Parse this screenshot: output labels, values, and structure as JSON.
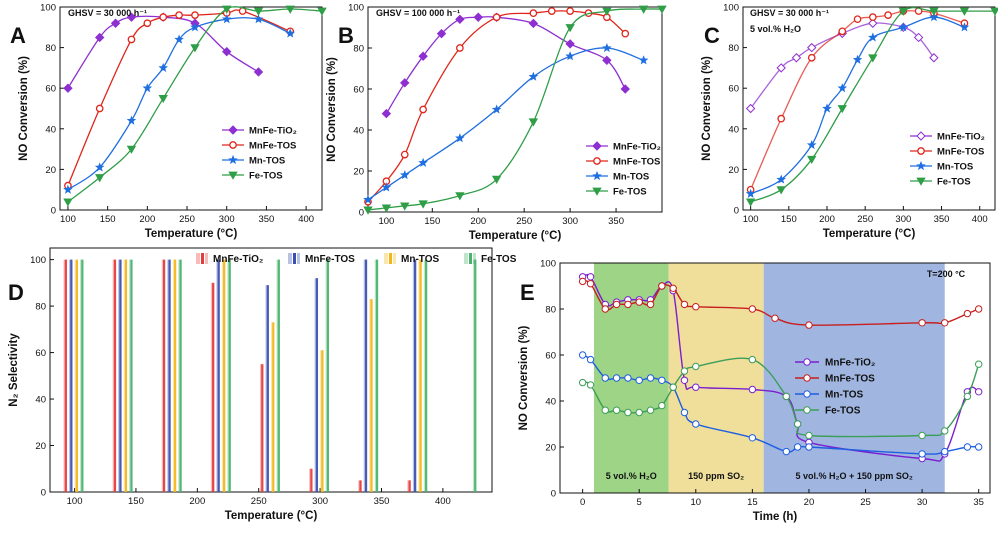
{
  "colors": {
    "MnFe-TiO2": "#8e2fd1",
    "MnFe-TOS": "#e0251b",
    "Mn-TOS": "#1f6fe0",
    "Fe-TOS": "#2f9e47",
    "E_MnFe-TiO2": "#7a1fd0",
    "E_MnFe-TOS": "#c81e1e",
    "E_Mn-TOS": "#1e5fe0",
    "E_Fe-TOS": "#3d9e58"
  },
  "chart_data": [
    {
      "id": "A",
      "type": "line",
      "panel_label": "A",
      "annotation": "GHSV = 30 000 h⁻¹",
      "xlabel": "Temperature (°C)",
      "ylabel": "NO Conversion (%)",
      "xlim": [
        90,
        420
      ],
      "ylim": [
        0,
        100
      ],
      "xticks": [
        100,
        150,
        200,
        250,
        300,
        350,
        400
      ],
      "yticks": [
        0,
        20,
        40,
        60,
        80,
        100
      ],
      "legend_position": "center-right",
      "series": [
        {
          "name": "MnFe-TiO₂",
          "key": "MnFe-TiO2",
          "marker": "diamond",
          "style": "solid",
          "x": [
            100,
            140,
            160,
            180,
            220,
            260,
            300,
            340
          ],
          "y": [
            60,
            85,
            92,
            95,
            95,
            92,
            78,
            68
          ]
        },
        {
          "name": "MnFe-TOS",
          "key": "MnFe-TOS",
          "marker": "circle",
          "style": "solid",
          "x": [
            100,
            140,
            180,
            200,
            220,
            240,
            260,
            300,
            320,
            380
          ],
          "y": [
            12,
            50,
            84,
            92,
            95,
            96,
            96,
            97,
            98,
            88
          ]
        },
        {
          "name": "Mn-TOS",
          "key": "Mn-TOS",
          "marker": "star",
          "style": "solid",
          "x": [
            100,
            140,
            180,
            200,
            220,
            240,
            260,
            300,
            340,
            380
          ],
          "y": [
            10,
            21,
            44,
            60,
            70,
            84,
            90,
            94,
            94,
            87
          ]
        },
        {
          "name": "Fe-TOS",
          "key": "Fe-TOS",
          "marker": "tri-down",
          "style": "solid",
          "x": [
            100,
            140,
            180,
            220,
            260,
            300,
            340,
            380,
            420
          ],
          "y": [
            4,
            16,
            30,
            55,
            80,
            99,
            98,
            99,
            98
          ]
        }
      ]
    },
    {
      "id": "B",
      "type": "line",
      "panel_label": "B",
      "annotation": "GHSV = 100 000 h⁻¹",
      "xlabel": "Temperature (°C)",
      "ylabel": "NO Conversion (%)",
      "xlim": [
        80,
        400
      ],
      "ylim": [
        0,
        100
      ],
      "xticks": [
        100,
        150,
        200,
        250,
        300,
        350
      ],
      "yticks": [
        0,
        20,
        40,
        60,
        80,
        100
      ],
      "legend_position": "center-right",
      "series": [
        {
          "name": "MnFe-TiO₂",
          "key": "MnFe-TiO2",
          "marker": "diamond",
          "style": "solid",
          "x": [
            100,
            120,
            140,
            160,
            180,
            200,
            220,
            260,
            300,
            340,
            360
          ],
          "y": [
            48,
            63,
            76,
            87,
            94,
            95,
            95,
            92,
            82,
            74,
            60
          ]
        },
        {
          "name": "MnFe-TOS",
          "key": "MnFe-TOS",
          "marker": "circle",
          "style": "solid",
          "x": [
            80,
            100,
            120,
            140,
            180,
            220,
            260,
            280,
            300,
            320,
            340,
            360
          ],
          "y": [
            5,
            15,
            28,
            50,
            80,
            95,
            97,
            98,
            98,
            97,
            95,
            87
          ]
        },
        {
          "name": "Mn-TOS",
          "key": "Mn-TOS",
          "marker": "star",
          "style": "solid",
          "x": [
            80,
            100,
            120,
            140,
            180,
            220,
            260,
            300,
            340,
            380
          ],
          "y": [
            6,
            12,
            18,
            24,
            36,
            50,
            66,
            76,
            80,
            74
          ]
        },
        {
          "name": "Fe-TOS",
          "key": "Fe-TOS",
          "marker": "tri-down",
          "style": "solid",
          "x": [
            80,
            100,
            120,
            140,
            180,
            220,
            260,
            300,
            340,
            380,
            400
          ],
          "y": [
            1,
            2,
            3,
            4,
            8,
            16,
            44,
            90,
            98,
            99,
            99
          ]
        }
      ]
    },
    {
      "id": "C",
      "type": "line",
      "panel_label": "C",
      "annotation": "GHSV = 30 000 h⁻¹",
      "annotation2": "5 vol.% H₂O",
      "xlabel": "Temperature (°C)",
      "ylabel": "NO Conversion (%)",
      "xlim": [
        90,
        420
      ],
      "ylim": [
        0,
        100
      ],
      "xticks": [
        100,
        150,
        200,
        250,
        300,
        350,
        400
      ],
      "yticks": [
        0,
        20,
        40,
        60,
        80,
        100
      ],
      "legend_position": "center-right",
      "series": [
        {
          "name": "MnFe-TiO₂",
          "key": "MnFe-TiO2",
          "marker": "diamond",
          "style": "dim",
          "x": [
            100,
            140,
            160,
            180,
            220,
            260,
            300,
            320,
            340
          ],
          "y": [
            50,
            70,
            75,
            80,
            87,
            92,
            90,
            85,
            75
          ]
        },
        {
          "name": "MnFe-TOS",
          "key": "MnFe-TOS",
          "marker": "circle",
          "style": "dim",
          "x": [
            100,
            140,
            180,
            220,
            240,
            260,
            280,
            300,
            320,
            340,
            380
          ],
          "y": [
            10,
            45,
            75,
            88,
            94,
            95,
            96,
            98,
            98,
            97,
            92
          ]
        },
        {
          "name": "Mn-TOS",
          "key": "Mn-TOS",
          "marker": "star",
          "style": "solid",
          "x": [
            100,
            140,
            180,
            200,
            220,
            240,
            260,
            300,
            340,
            380
          ],
          "y": [
            8,
            15,
            32,
            50,
            60,
            74,
            85,
            90,
            95,
            90
          ]
        },
        {
          "name": "Fe-TOS",
          "key": "Fe-TOS",
          "marker": "tri-down",
          "style": "solid",
          "x": [
            100,
            140,
            180,
            220,
            260,
            300,
            340,
            380,
            420
          ],
          "y": [
            4,
            10,
            25,
            50,
            75,
            98,
            98,
            98,
            98
          ]
        }
      ]
    },
    {
      "id": "D",
      "type": "bar",
      "panel_label": "D",
      "xlabel": "Temperature (°C)",
      "ylabel": "N₂ Selectivity",
      "xlim": [
        80,
        440
      ],
      "ylim": [
        0,
        105
      ],
      "xticks": [
        100,
        150,
        200,
        250,
        300,
        350,
        400
      ],
      "yticks": [
        0,
        20,
        40,
        60,
        80,
        100
      ],
      "legend_position": "top",
      "categories": [
        100,
        140,
        180,
        220,
        260,
        300,
        340,
        380,
        420
      ],
      "series": [
        {
          "name": "MnFe-TiO₂",
          "key": "MnFe-TiO2",
          "color": "#e63b3b",
          "values": [
            100,
            100,
            100,
            90,
            55,
            10,
            5,
            5,
            null
          ]
        },
        {
          "name": "MnFe-TOS",
          "key": "MnFe-TOS",
          "color": "#3a4fb0",
          "values": [
            100,
            100,
            100,
            100,
            89,
            92,
            100,
            100,
            null
          ]
        },
        {
          "name": "Mn-TOS",
          "key": "Mn-TOS",
          "color": "#f2b619",
          "values": [
            100,
            100,
            100,
            100,
            73,
            61,
            83,
            100,
            null
          ]
        },
        {
          "name": "Fe-TOS",
          "key": "Fe-TOS",
          "color": "#48b36b",
          "values": [
            100,
            100,
            100,
            100,
            100,
            100,
            100,
            100,
            100
          ]
        }
      ]
    },
    {
      "id": "E",
      "type": "line",
      "panel_label": "E",
      "annotation": "T=200 °C",
      "xlabel": "Time (h)",
      "ylabel": "NO Conversion (%)",
      "xlim": [
        -2,
        36
      ],
      "ylim": [
        0,
        100
      ],
      "xticks": [
        0,
        5,
        10,
        15,
        20,
        25,
        30,
        35
      ],
      "yticks": [
        0,
        20,
        40,
        60,
        80,
        100
      ],
      "legend_position": "center-right",
      "regions": [
        {
          "x0": 1,
          "x1": 7.6,
          "color": "#8ccc70",
          "label": "5 vol.% H₂O"
        },
        {
          "x0": 7.6,
          "x1": 16,
          "color": "#ecd98a",
          "label": "150 ppm SO₂"
        },
        {
          "x0": 16,
          "x1": 32,
          "color": "#8fa9dc",
          "label": "5 vol.% H₂O + 150 ppm SO₂"
        }
      ],
      "series": [
        {
          "name": "MnFe-TiO₂",
          "key": "E_MnFe-TiO2",
          "x": [
            0,
            0.7,
            2,
            3,
            4,
            5,
            6,
            7,
            8,
            9,
            10,
            15,
            18,
            19,
            20,
            30,
            32,
            34,
            35
          ],
          "y": [
            94,
            94,
            82,
            83,
            84,
            84,
            84,
            90,
            88,
            49,
            46,
            45,
            42,
            30,
            22,
            15,
            17,
            44,
            44
          ]
        },
        {
          "name": "MnFe-TOS",
          "key": "E_MnFe-TOS",
          "x": [
            0,
            0.7,
            2,
            3,
            4,
            5,
            6,
            7,
            8,
            9,
            10,
            15,
            17,
            20,
            30,
            32,
            34,
            35
          ],
          "y": [
            92,
            91,
            80,
            82,
            82,
            83,
            82,
            90,
            89,
            82,
            81,
            80,
            76,
            73,
            74,
            74,
            78,
            80
          ]
        },
        {
          "name": "Mn-TOS",
          "key": "E_Mn-TOS",
          "x": [
            0,
            0.7,
            2,
            3,
            4,
            5,
            6,
            7,
            8,
            9,
            10,
            15,
            18,
            19,
            20,
            30,
            32,
            34,
            35
          ],
          "y": [
            60,
            58,
            50,
            50,
            50,
            49,
            50,
            49,
            46,
            35,
            30,
            24,
            18,
            20,
            20,
            17,
            18,
            20,
            20
          ]
        },
        {
          "name": "Fe-TOS",
          "key": "E_Fe-TOS",
          "x": [
            0,
            0.7,
            2,
            3,
            4,
            5,
            6,
            7,
            8,
            9,
            10,
            15,
            18,
            19,
            20,
            30,
            32,
            34,
            35
          ],
          "y": [
            48,
            47,
            36,
            36,
            35,
            35,
            36,
            38,
            46,
            53,
            55,
            58,
            42,
            30,
            25,
            25,
            27,
            42,
            56
          ]
        }
      ]
    }
  ]
}
